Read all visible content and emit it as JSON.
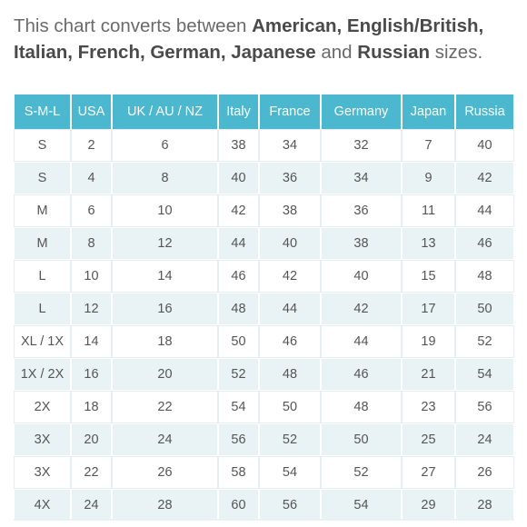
{
  "intro": {
    "prefix": "This chart converts between ",
    "bold1": "American, English/British, Italian, French, German, Japanese",
    "middle": " and ",
    "bold2": "Russian",
    "suffix": " sizes."
  },
  "table": {
    "headers": [
      "S-M-L",
      "USA",
      "UK / AU / NZ",
      "Italy",
      "France",
      "Germany",
      "Japan",
      "Russia"
    ],
    "rows": [
      [
        "S",
        "2",
        "6",
        "38",
        "34",
        "32",
        "7",
        "40"
      ],
      [
        "S",
        "4",
        "8",
        "40",
        "36",
        "34",
        "9",
        "42"
      ],
      [
        "M",
        "6",
        "10",
        "42",
        "38",
        "36",
        "11",
        "44"
      ],
      [
        "M",
        "8",
        "12",
        "44",
        "40",
        "38",
        "13",
        "46"
      ],
      [
        "L",
        "10",
        "14",
        "46",
        "42",
        "40",
        "15",
        "48"
      ],
      [
        "L",
        "12",
        "16",
        "48",
        "44",
        "42",
        "17",
        "50"
      ],
      [
        "XL / 1X",
        "14",
        "18",
        "50",
        "46",
        "44",
        "19",
        "52"
      ],
      [
        "1X / 2X",
        "16",
        "20",
        "52",
        "48",
        "46",
        "21",
        "54"
      ],
      [
        "2X",
        "18",
        "22",
        "54",
        "50",
        "48",
        "23",
        "56"
      ],
      [
        "3X",
        "20",
        "24",
        "56",
        "52",
        "50",
        "25",
        "24"
      ],
      [
        "3X",
        "22",
        "26",
        "58",
        "54",
        "52",
        "27",
        "26"
      ],
      [
        "4X",
        "24",
        "28",
        "60",
        "56",
        "54",
        "29",
        "28"
      ]
    ]
  },
  "colors": {
    "header_bg": "#4bb8cf",
    "stripe_bg": "#e9f3f6"
  }
}
